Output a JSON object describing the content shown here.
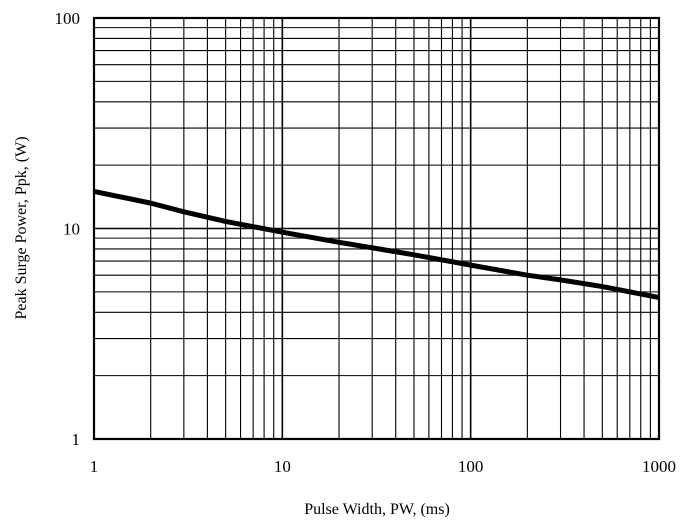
{
  "chart_data": {
    "type": "line",
    "x_scale": "log",
    "y_scale": "log",
    "xlim": [
      1,
      1000
    ],
    "ylim": [
      1,
      100
    ],
    "xlabel": "Pulse Width, PW, (ms)",
    "ylabel": "Peak Surge Power, Ppk, (W)",
    "x_tick_labels": [
      "1",
      "10",
      "100",
      "1000"
    ],
    "x_tick_values": [
      1,
      10,
      100,
      1000
    ],
    "y_tick_labels": [
      "1",
      "10",
      "100"
    ],
    "y_tick_values": [
      1,
      10,
      100
    ],
    "grid": true,
    "series": [
      {
        "color": "#000000",
        "x": [
          1,
          2,
          3,
          5,
          10,
          20,
          50,
          100,
          200,
          300,
          500,
          1000
        ],
        "y": [
          15.0,
          13.2,
          12.0,
          10.8,
          9.6,
          8.6,
          7.5,
          6.7,
          6.0,
          5.7,
          5.3,
          4.7
        ]
      }
    ]
  }
}
